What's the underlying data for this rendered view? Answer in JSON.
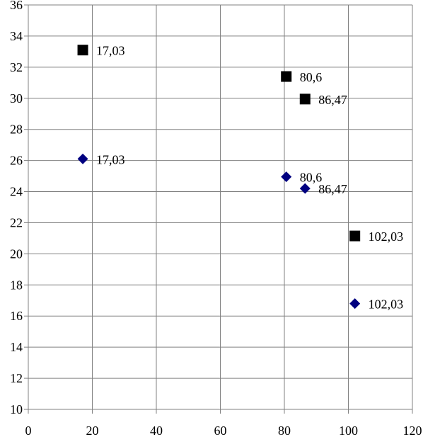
{
  "chart_data": {
    "type": "scatter",
    "title": "",
    "xlabel": "",
    "ylabel": "",
    "xlim": [
      0,
      120
    ],
    "ylim": [
      10,
      36
    ],
    "x_ticks": [
      0,
      20,
      40,
      60,
      80,
      100,
      120
    ],
    "y_ticks": [
      10,
      12,
      14,
      16,
      18,
      20,
      22,
      24,
      26,
      28,
      30,
      32,
      34,
      36
    ],
    "grid": true,
    "legend": "none",
    "series": [
      {
        "marker": "square",
        "color": "#000000",
        "points": [
          {
            "x": 17.03,
            "y": 33.1,
            "label": "17,03"
          },
          {
            "x": 80.6,
            "y": 31.4,
            "label": "80,6"
          },
          {
            "x": 86.47,
            "y": 29.95,
            "label": "86,47"
          },
          {
            "x": 102.03,
            "y": 21.15,
            "label": "102,03"
          }
        ]
      },
      {
        "marker": "diamond",
        "color": "#000080",
        "points": [
          {
            "x": 17.03,
            "y": 26.1,
            "label": "17,03"
          },
          {
            "x": 80.6,
            "y": 24.95,
            "label": "80,6"
          },
          {
            "x": 86.47,
            "y": 24.2,
            "label": "86,47"
          },
          {
            "x": 102.03,
            "y": 16.8,
            "label": "102,03"
          }
        ]
      }
    ]
  }
}
